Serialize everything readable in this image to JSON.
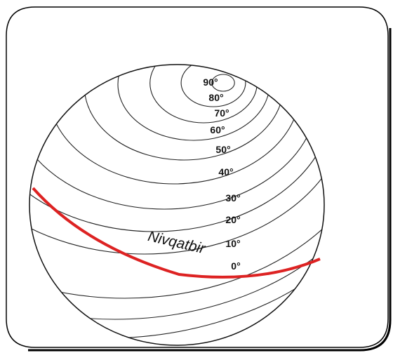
{
  "latitude_labels": [
    "90°",
    "80°",
    "70°",
    "60°",
    "50°",
    "40°",
    "30°",
    "20°",
    "10°",
    "0°"
  ],
  "equator_label": "Nivqatbir"
}
